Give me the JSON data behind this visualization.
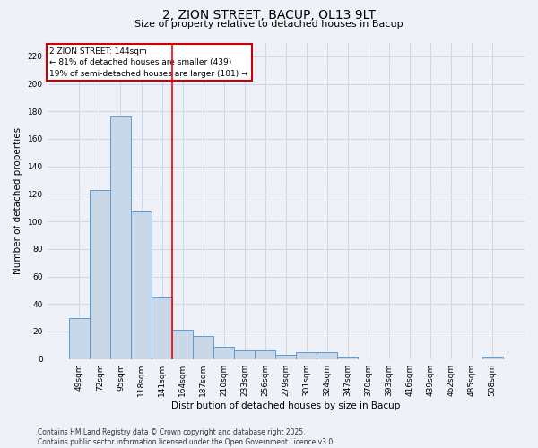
{
  "title1": "2, ZION STREET, BACUP, OL13 9LT",
  "title2": "Size of property relative to detached houses in Bacup",
  "xlabel": "Distribution of detached houses by size in Bacup",
  "ylabel": "Number of detached properties",
  "categories": [
    "49sqm",
    "72sqm",
    "95sqm",
    "118sqm",
    "141sqm",
    "164sqm",
    "187sqm",
    "210sqm",
    "233sqm",
    "256sqm",
    "279sqm",
    "301sqm",
    "324sqm",
    "347sqm",
    "370sqm",
    "393sqm",
    "416sqm",
    "439sqm",
    "462sqm",
    "485sqm",
    "508sqm"
  ],
  "values": [
    30,
    123,
    176,
    107,
    45,
    21,
    17,
    9,
    6,
    6,
    3,
    5,
    5,
    2,
    0,
    0,
    0,
    0,
    0,
    0,
    2
  ],
  "bar_color": "#c8d8e8",
  "bar_edge_color": "#5a9bd4",
  "red_line_x": 4.5,
  "annotation_title": "2 ZION STREET: 144sqm",
  "annotation_line1": "← 81% of detached houses are smaller (439)",
  "annotation_line2": "19% of semi-detached houses are larger (101) →",
  "box_color": "#ffffff",
  "box_edge_color": "#cc0000",
  "grid_color": "#d0d8e8",
  "background_color": "#eef2f8",
  "footnote1": "Contains HM Land Registry data © Crown copyright and database right 2025.",
  "footnote2": "Contains public sector information licensed under the Open Government Licence v3.0.",
  "yticks": [
    0,
    20,
    40,
    60,
    80,
    100,
    120,
    140,
    160,
    180,
    200,
    220
  ],
  "ylim": [
    0,
    230
  ]
}
